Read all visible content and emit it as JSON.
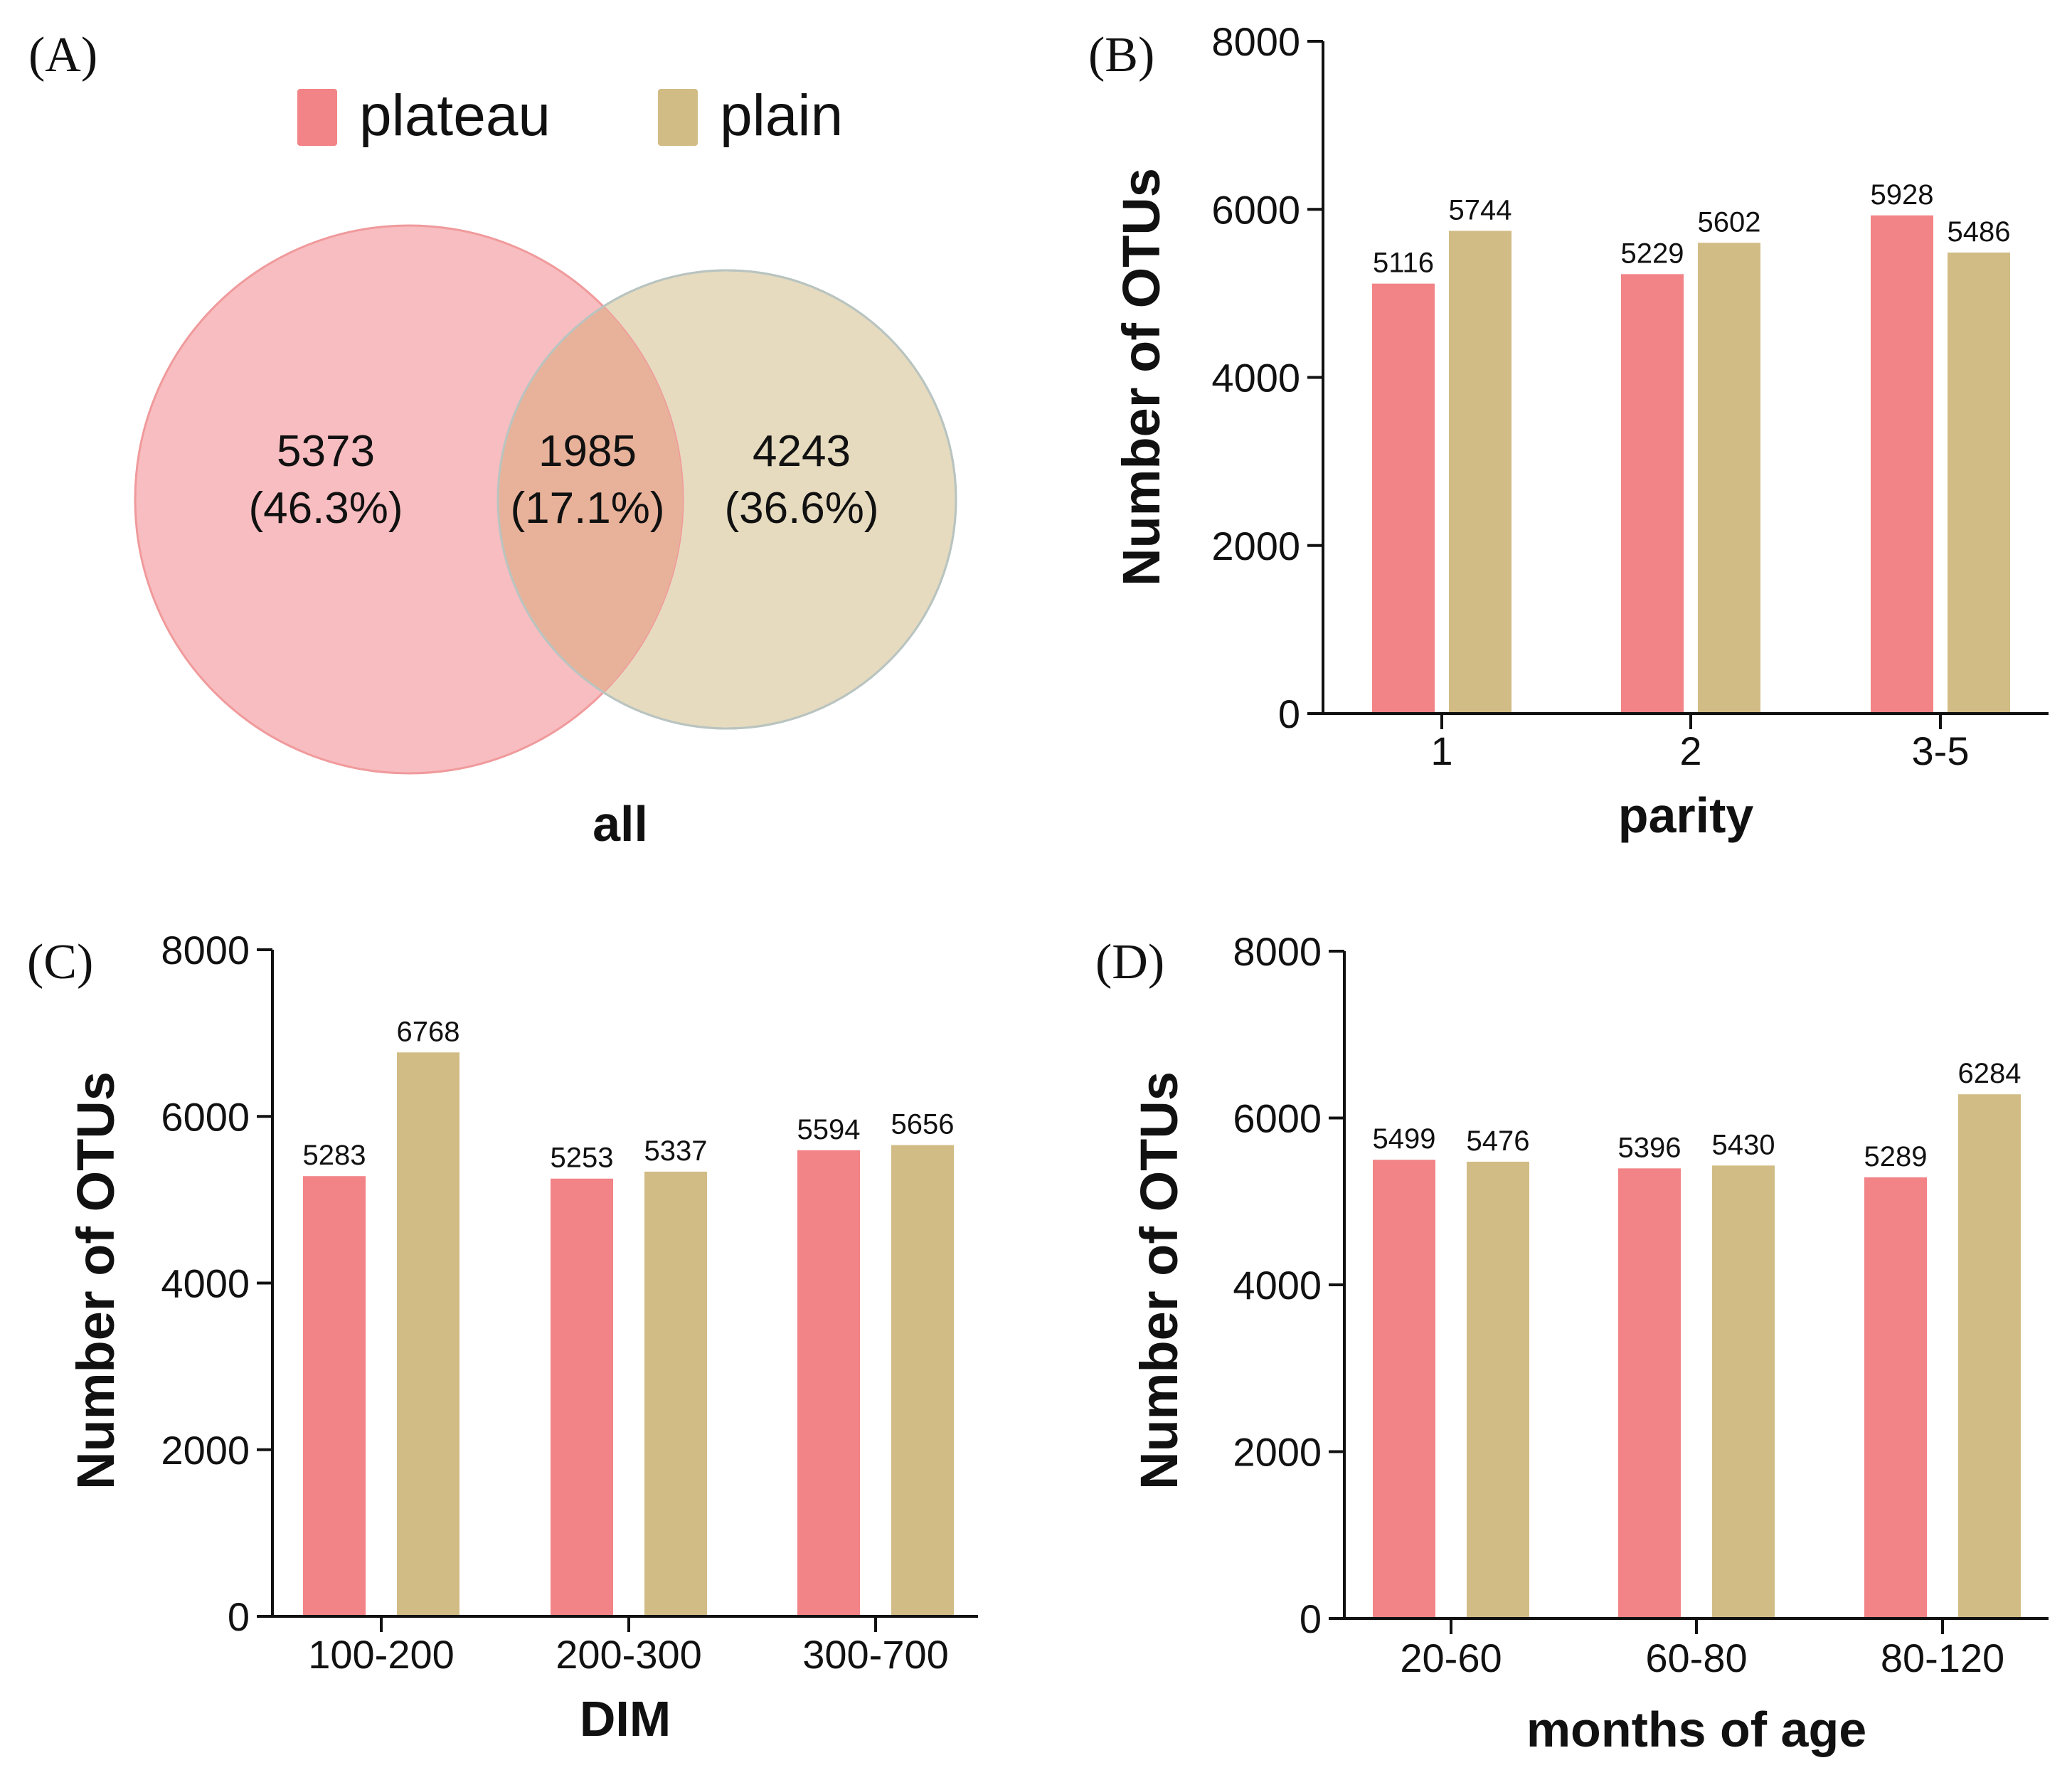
{
  "colors": {
    "plateau": "#f28386",
    "plain": "#d2bc85",
    "plateau_circle": "#f7b8bb",
    "plain_circle": "#e6dbbf",
    "overlap": "#e8b29a",
    "axis": "#111111"
  },
  "legend": [
    {
      "key": "plateau",
      "label": "plateau"
    },
    {
      "key": "plain",
      "label": "plain"
    }
  ],
  "chart_data": [
    {
      "panel": "(A)",
      "type": "venn",
      "xlabel": "all",
      "sets": [
        {
          "name": "plateau",
          "count": "5373",
          "percent": "(46.3%)"
        },
        {
          "name": "plain",
          "count": "4243",
          "percent": "(36.6%)"
        }
      ],
      "intersection": {
        "count": "1985",
        "percent": "(17.1%)"
      }
    },
    {
      "panel": "(B)",
      "type": "bar",
      "xlabel": "parity",
      "ylabel": "Number of OTUs",
      "ylim": [
        0,
        8000
      ],
      "yticks": [
        0,
        2000,
        4000,
        6000,
        8000
      ],
      "categories": [
        "1",
        "2",
        "3-5"
      ],
      "series": [
        {
          "name": "plateau",
          "values": [
            5116,
            5229,
            5928
          ]
        },
        {
          "name": "plain",
          "values": [
            5744,
            5602,
            5486
          ]
        }
      ]
    },
    {
      "panel": "(C)",
      "type": "bar",
      "xlabel": "DIM",
      "ylabel": "Number of OTUs",
      "ylim": [
        0,
        8000
      ],
      "yticks": [
        0,
        2000,
        4000,
        6000,
        8000
      ],
      "categories": [
        "100-200",
        "200-300",
        "300-700"
      ],
      "series": [
        {
          "name": "plateau",
          "values": [
            5283,
            5253,
            5594
          ]
        },
        {
          "name": "plain",
          "values": [
            6768,
            5337,
            5656
          ]
        }
      ]
    },
    {
      "panel": "(D)",
      "type": "bar",
      "xlabel": "months of age",
      "ylabel": "Number of OTUs",
      "ylim": [
        0,
        8000
      ],
      "yticks": [
        0,
        2000,
        4000,
        6000,
        8000
      ],
      "categories": [
        "20-60",
        "60-80",
        "80-120"
      ],
      "series": [
        {
          "name": "plateau",
          "values": [
            5499,
            5396,
            5289
          ]
        },
        {
          "name": "plain",
          "values": [
            5476,
            5430,
            6284
          ]
        }
      ]
    }
  ]
}
